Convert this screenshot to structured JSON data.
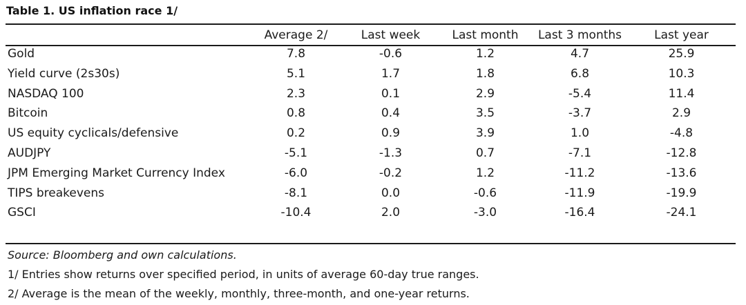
{
  "title": "Table 1. US inflation race 1/",
  "columns": [
    "Average 2/",
    "Last week",
    "Last month",
    "Last 3 months",
    "Last year"
  ],
  "rows": [
    {
      "label": "Gold",
      "values": [
        "7.8",
        "-0.6",
        "1.2",
        "4.7",
        "25.9"
      ]
    },
    {
      "label": "Yield curve (2s30s)",
      "values": [
        "5.1",
        "1.7",
        "1.8",
        "6.8",
        "10.3"
      ]
    },
    {
      "label": "NASDAQ 100",
      "values": [
        "2.3",
        "0.1",
        "2.9",
        "-5.4",
        "11.4"
      ]
    },
    {
      "label": "Bitcoin",
      "values": [
        "0.8",
        "0.4",
        "3.5",
        "-3.7",
        "2.9"
      ]
    },
    {
      "label": "US equity cyclicals/defensive",
      "values": [
        "0.2",
        "0.9",
        "3.9",
        "1.0",
        "-4.8"
      ]
    },
    {
      "label": "AUDJPY",
      "values": [
        "-5.1",
        "-1.3",
        "0.7",
        "-7.1",
        "-12.8"
      ]
    },
    {
      "label": "JPM Emerging Market Currency Index",
      "values": [
        "-6.0",
        "-0.2",
        "1.2",
        "-11.2",
        "-13.6"
      ]
    },
    {
      "label": "TIPS breakevens",
      "values": [
        "-8.1",
        "0.0",
        "-0.6",
        "-11.9",
        "-19.9"
      ]
    },
    {
      "label": "GSCI",
      "values": [
        "-10.4",
        "2.0",
        "-3.0",
        "-16.4",
        "-24.1"
      ]
    }
  ],
  "footnotes": {
    "source": "Source: Bloomberg and own calculations.",
    "note1": "1/ Entries show returns over specified period, in units of average 60-day true ranges.",
    "note2": "2/ Average is the mean of the weekly, monthly, three-month, and one-year returns."
  }
}
